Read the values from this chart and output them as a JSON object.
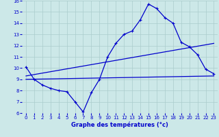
{
  "xlabel": "Graphe des températures (°c)",
  "xlim": [
    -0.5,
    23.5
  ],
  "ylim": [
    6,
    16
  ],
  "yticks": [
    6,
    7,
    8,
    9,
    10,
    11,
    12,
    13,
    14,
    15,
    16
  ],
  "xticks": [
    0,
    1,
    2,
    3,
    4,
    5,
    6,
    7,
    8,
    9,
    10,
    11,
    12,
    13,
    14,
    15,
    16,
    17,
    18,
    19,
    20,
    21,
    22,
    23
  ],
  "bg_color": "#cce8e8",
  "grid_color": "#aacccc",
  "line_color": "#0000cc",
  "tick_color": "#0000cc",
  "xlabel_color": "#0000cc",
  "line1_x": [
    0,
    1,
    2,
    3,
    4,
    5,
    6,
    7,
    8,
    9,
    10,
    11,
    12,
    13,
    14,
    15,
    16,
    17,
    18,
    19,
    20,
    21,
    22,
    23
  ],
  "line1_y": [
    10.1,
    9.0,
    8.5,
    8.2,
    8.0,
    7.9,
    7.0,
    6.1,
    7.8,
    9.0,
    11.0,
    12.2,
    13.0,
    13.3,
    14.3,
    15.7,
    15.3,
    14.5,
    14.0,
    12.3,
    11.9,
    11.2,
    9.9,
    9.5
  ],
  "line2_x": [
    0,
    23
  ],
  "line2_y": [
    9.3,
    12.2
  ],
  "line3_x": [
    0,
    23
  ],
  "line3_y": [
    9.0,
    9.3
  ]
}
